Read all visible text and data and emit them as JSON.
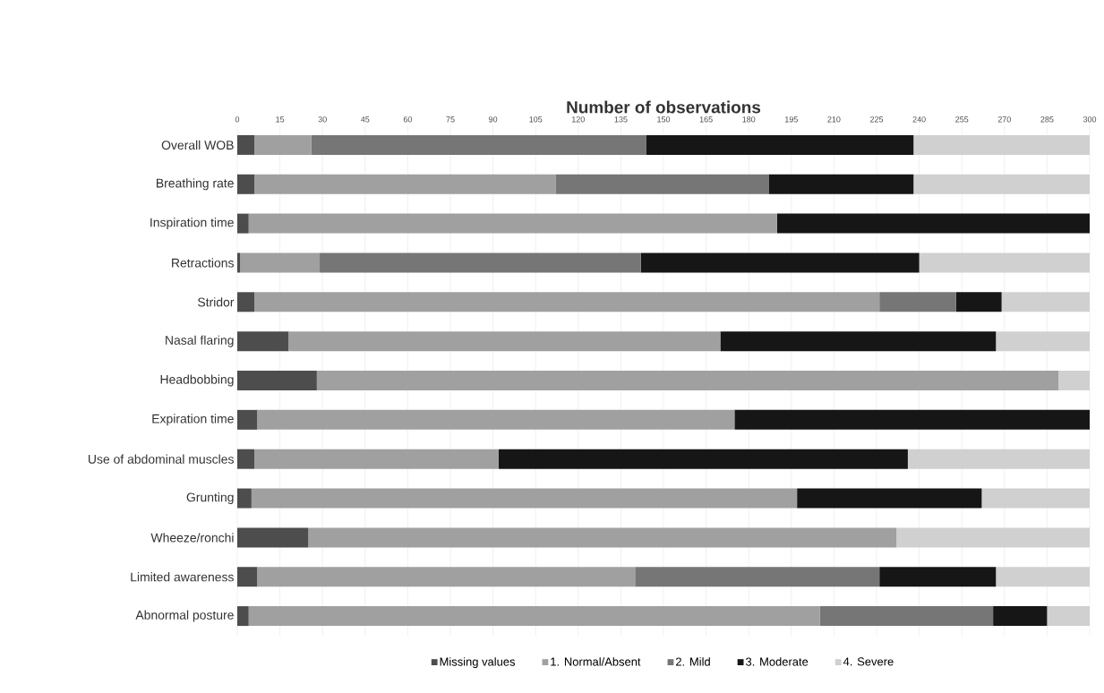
{
  "chart_data": {
    "type": "bar",
    "orientation": "horizontal",
    "stacked": true,
    "title": "Number of observations",
    "categories": [
      "Overall WOB",
      "Breathing rate",
      "Inspiration time",
      "Retractions",
      "Stridor",
      "Nasal flaring",
      "Headbobbing",
      "Expiration time",
      "Use of abdominal muscles",
      "Grunting",
      "Wheeze/ronchi",
      "Limited awareness",
      "Abnormal posture"
    ],
    "series": [
      {
        "name": "Missing values",
        "color": "#4d4d4d",
        "values": [
          6,
          6,
          4,
          1,
          6,
          18,
          28,
          7,
          6,
          5,
          25,
          7,
          4
        ]
      },
      {
        "name": "1. Normal/Absent",
        "color": "#a0a0a0",
        "values": [
          20,
          106,
          186,
          28,
          220,
          152,
          261,
          168,
          86,
          192,
          207,
          133,
          201
        ]
      },
      {
        "name": "2. Mild",
        "color": "#767676",
        "values": [
          118,
          75,
          0,
          113,
          27,
          0,
          0,
          0,
          0,
          0,
          0,
          86,
          61
        ]
      },
      {
        "name": "3. Moderate",
        "color": "#161616",
        "values": [
          94,
          51,
          110,
          98,
          16,
          97,
          0,
          125,
          144,
          65,
          0,
          41,
          19
        ]
      },
      {
        "name": "4. Severe",
        "color": "#d0d0d0",
        "values": [
          62,
          62,
          0,
          60,
          31,
          33,
          11,
          0,
          64,
          38,
          68,
          33,
          15
        ]
      }
    ],
    "xlim": [
      0,
      300
    ],
    "xticks": [
      0,
      15,
      30,
      45,
      60,
      75,
      90,
      105,
      120,
      135,
      150,
      165,
      180,
      195,
      210,
      225,
      240,
      255,
      270,
      285,
      300
    ],
    "grid": "x",
    "legend": "bottom"
  }
}
